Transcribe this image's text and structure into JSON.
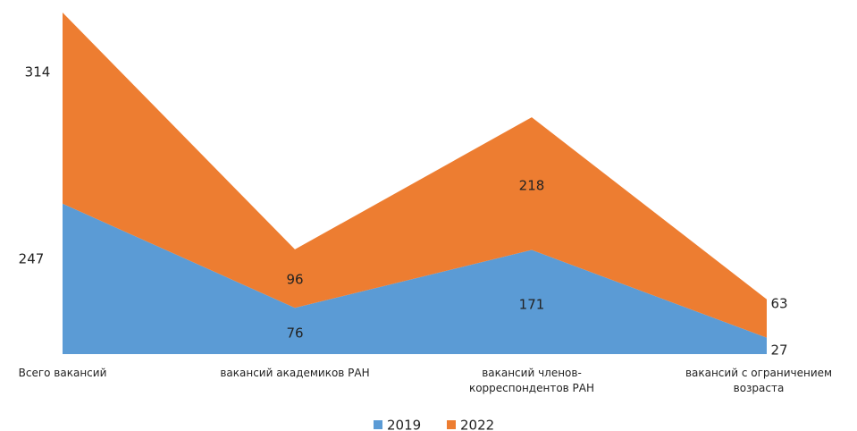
{
  "chart_data": {
    "type": "stacked_area",
    "categories": [
      "Всего вакансий",
      "вакансий академиков РАН",
      "вакансий членов-корреспондентов РАН",
      "вакансий с ограничением возраста"
    ],
    "series": [
      {
        "name": "2019",
        "color": "#5b9bd5",
        "values": [
          247,
          76,
          171,
          27
        ]
      },
      {
        "name": "2022",
        "color": "#ed7d31",
        "values": [
          314,
          96,
          218,
          63
        ]
      }
    ],
    "legend": "bottom"
  }
}
